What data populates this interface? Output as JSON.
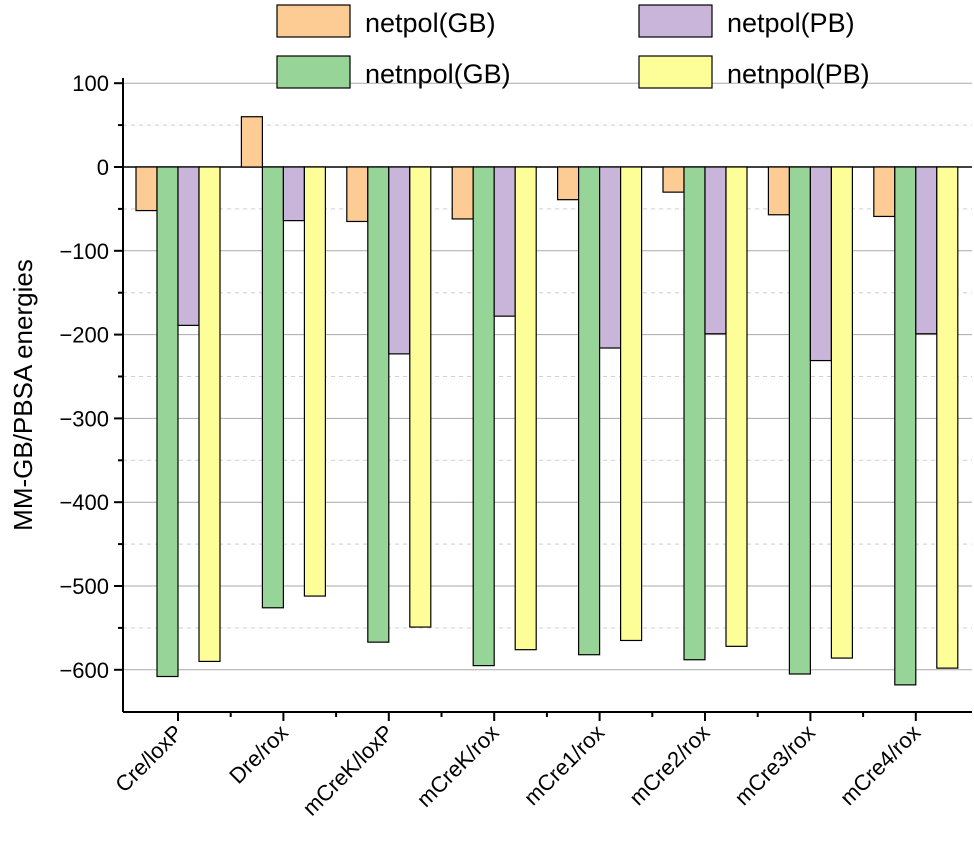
{
  "chart_data": {
    "type": "bar",
    "title": "",
    "xlabel": "",
    "ylabel": "MM-GB/PBSA energies",
    "ylim": [
      -630,
      100
    ],
    "yticks": [
      100,
      0,
      -100,
      -200,
      -300,
      -400,
      -500,
      -600
    ],
    "grid": true,
    "legend_position": "top",
    "categories": [
      "Cre/loxP",
      "Dre/rox",
      "mCreK/loxP",
      "mCreK/rox",
      "mCre1/rox",
      "mCre2/rox",
      "mCre3/rox",
      "mCre4/rox"
    ],
    "series": [
      {
        "name": "netpol(GB)",
        "color": "#FDCB94",
        "values": [
          -52,
          60,
          -65,
          -62,
          -39,
          -30,
          -57,
          -59
        ]
      },
      {
        "name": "netnpol(GB)",
        "color": "#97D497",
        "values": [
          -608,
          -526,
          -567,
          -595,
          -582,
          -588,
          -605,
          -618
        ]
      },
      {
        "name": "netpol(PB)",
        "color": "#C9B5DA",
        "values": [
          -189,
          -64,
          -223,
          -178,
          -216,
          -199,
          -231,
          -199
        ]
      },
      {
        "name": "netnpol(PB)",
        "color": "#FEFE99",
        "values": [
          -590,
          -512,
          -549,
          -576,
          -565,
          -572,
          -586,
          -598
        ]
      }
    ]
  }
}
